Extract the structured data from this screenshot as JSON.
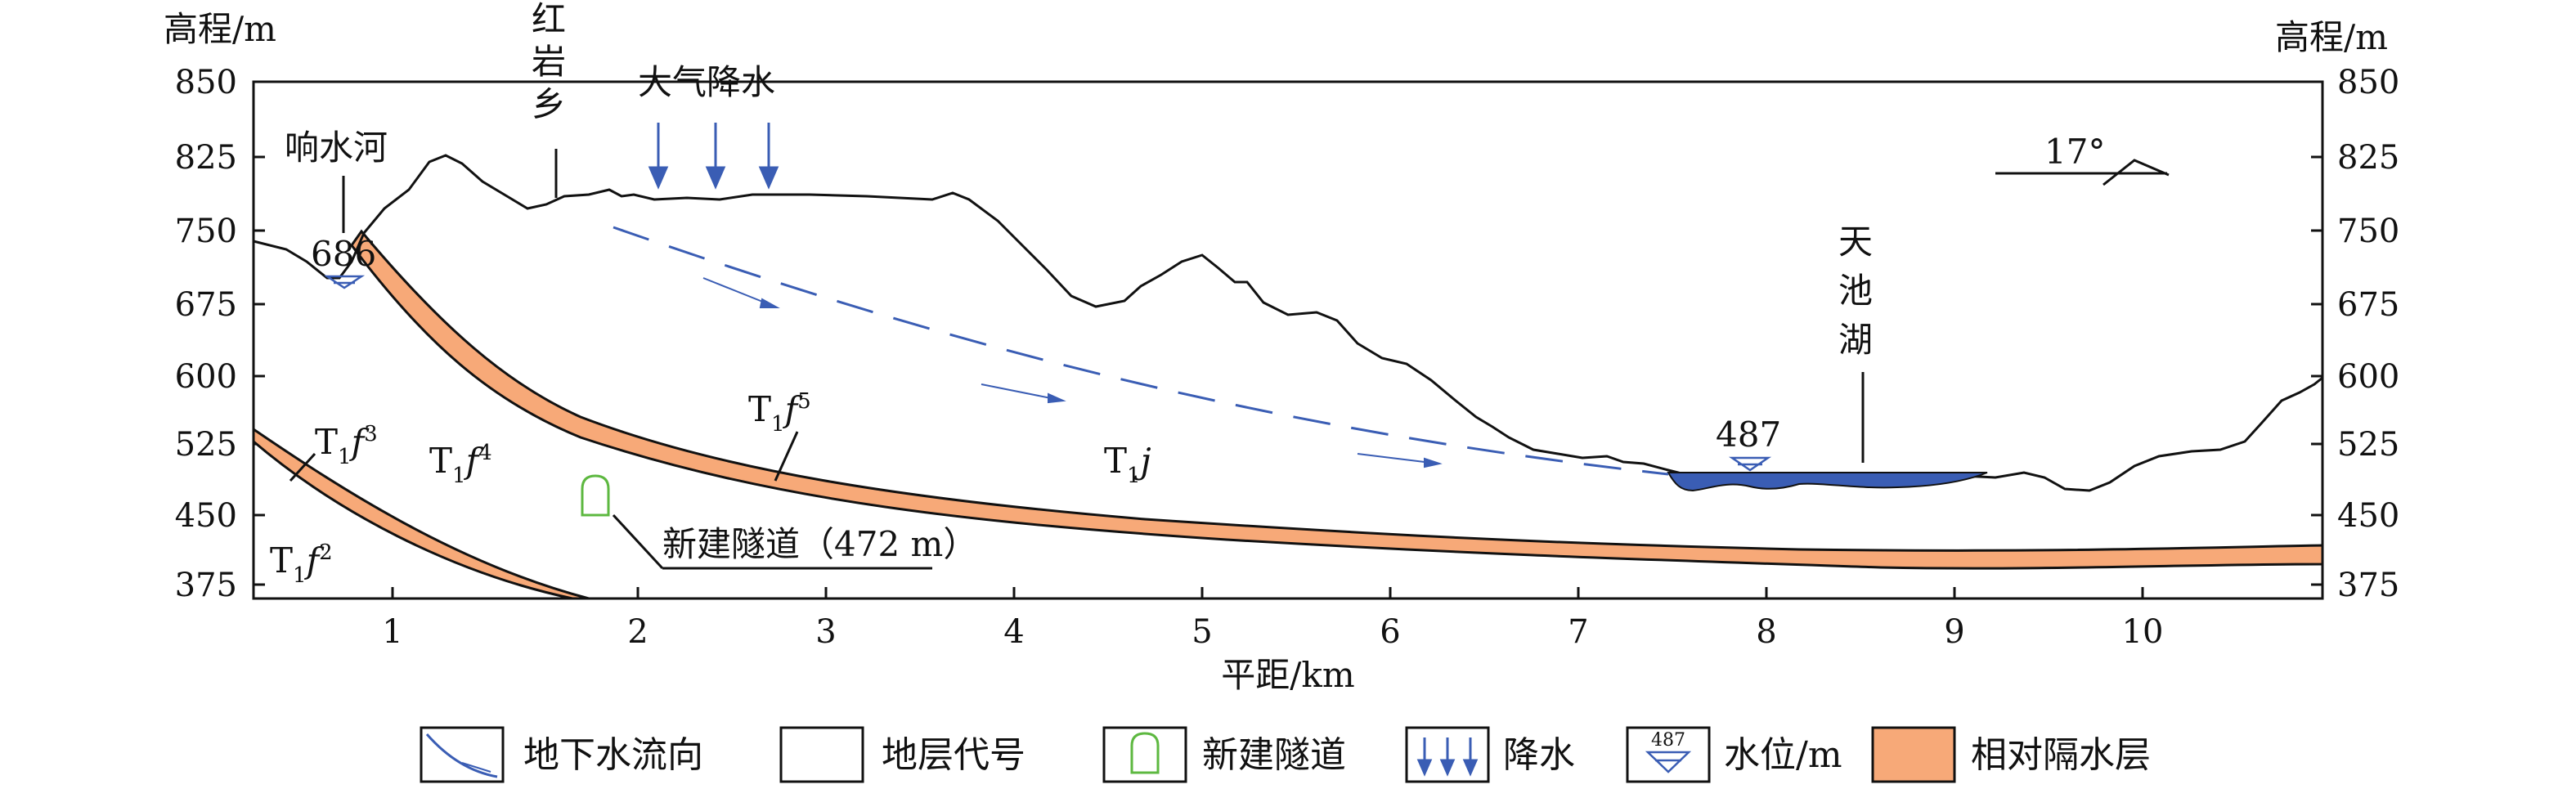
{
  "axes": {
    "y_title_left": "高程/m",
    "y_title_right": "高程/m",
    "x_title": "平距/km",
    "y_ticks": [
      "850",
      "825",
      "750",
      "675",
      "600",
      "525",
      "450",
      "375"
    ],
    "x_ticks": [
      "1",
      "2",
      "3",
      "4",
      "5",
      "6",
      "7",
      "8",
      "9",
      "10"
    ],
    "x_range": [
      0.45,
      10.95
    ]
  },
  "places": {
    "xiangshuihe": "响水河",
    "hongyan": [
      "红",
      "岩",
      "乡"
    ],
    "rain": "大气降水",
    "tianchi": [
      "天",
      "池",
      "湖"
    ]
  },
  "water_levels": {
    "left": "686",
    "right": "487"
  },
  "dip": "17°",
  "strata": {
    "t1f3": {
      "base": "T",
      "sub": "1",
      "f": "f",
      "sup": "3"
    },
    "t1f4": {
      "base": "T",
      "sub": "1",
      "f": "f",
      "sup": "4"
    },
    "t1f5": {
      "base": "T",
      "sub": "1",
      "f": "f",
      "sup": "5"
    },
    "t1f2": {
      "base": "T",
      "sub": "1",
      "f": "f",
      "sup": "2"
    },
    "t1j": {
      "base": "T",
      "sub": "1",
      "f": "j"
    }
  },
  "tunnel_label": "新建隧道（472 m）",
  "legend": {
    "flow": "地下水流向",
    "stratum": "地层代号",
    "tunnel": "新建隧道",
    "rain": "降水",
    "water_level_sample": "487",
    "water_level": "水位/m",
    "aquitard": "相对隔水层"
  },
  "colors": {
    "aquitard": "#F7A978",
    "water": "#3A5DB4",
    "flow": "#3A5DB4",
    "tunnel": "#5DB840"
  }
}
